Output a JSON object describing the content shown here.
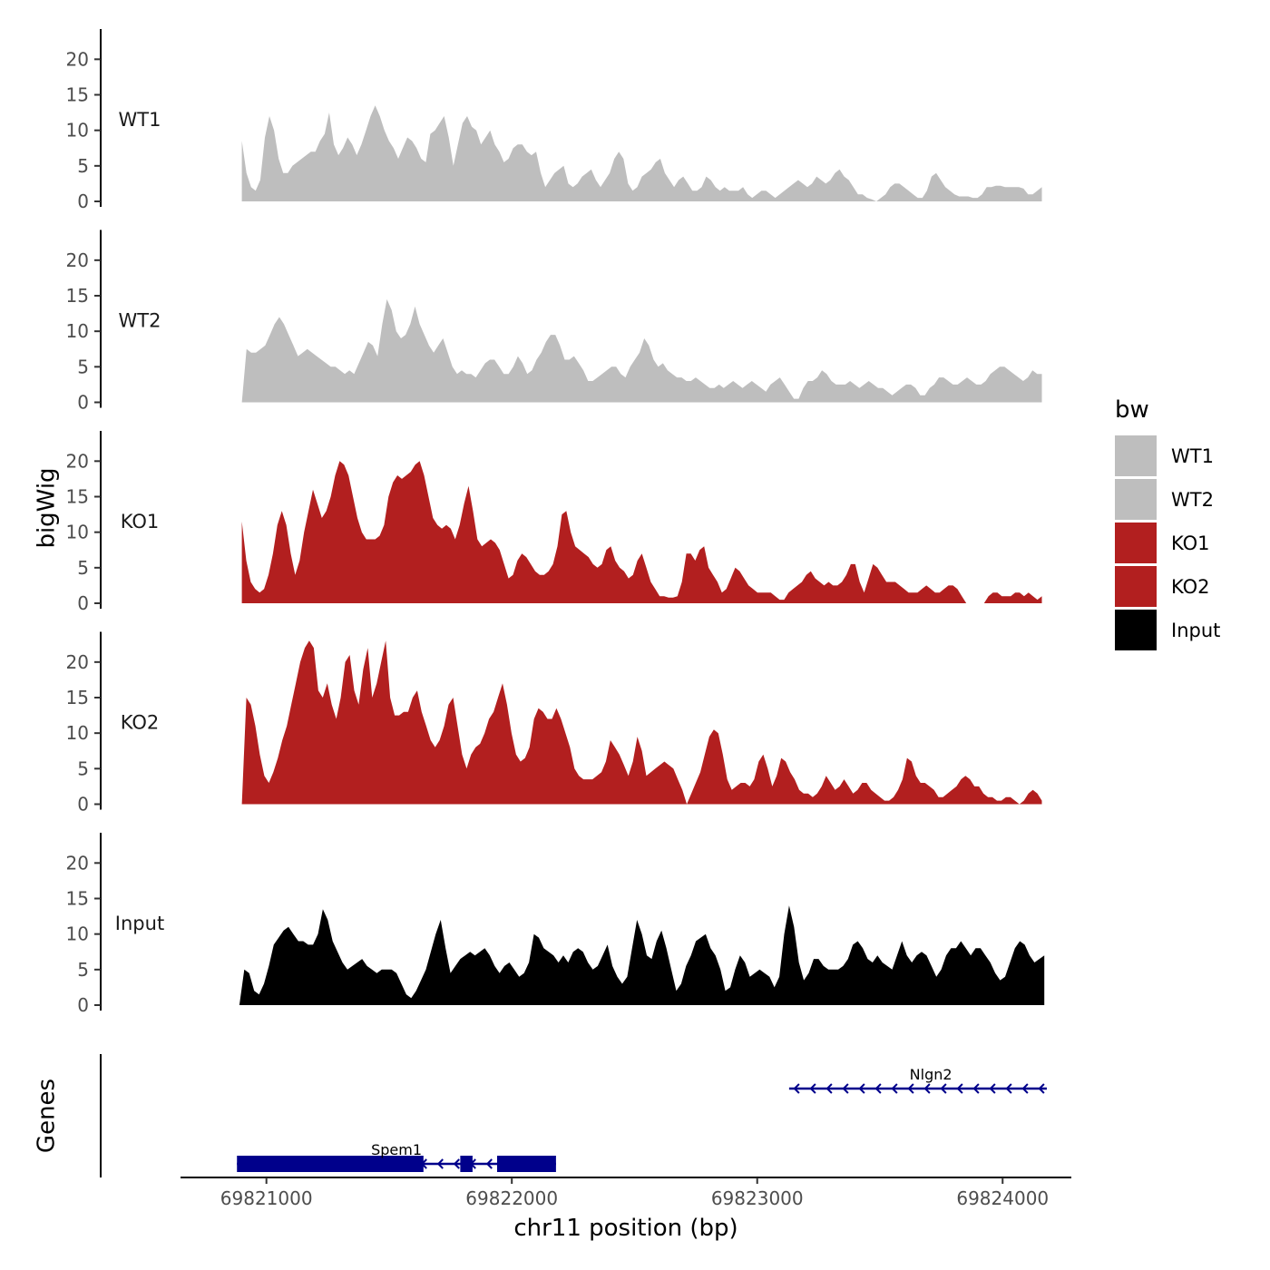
{
  "chart_data": {
    "type": "area",
    "xlabel": "chr11 position (bp)",
    "ylabel": "bigWig",
    "genes_label": "Genes",
    "xlim": [
      69820650,
      69824280
    ],
    "xticks": [
      69821000,
      69822000,
      69823000,
      69824000
    ],
    "xtick_labels": [
      "69821000",
      "69822000",
      "69823000",
      "69824000"
    ],
    "ylim": [
      0,
      24
    ],
    "yticks": [
      0,
      5,
      10,
      15,
      20
    ],
    "ytick_labels": [
      "0",
      "5",
      "10",
      "15",
      "20"
    ],
    "legend": {
      "title": "bw",
      "position": "right",
      "entries": [
        {
          "label": "WT1",
          "color": "#bebebe"
        },
        {
          "label": "WT2",
          "color": "#bebebe"
        },
        {
          "label": "KO1",
          "color": "#b21f1f"
        },
        {
          "label": "KO2",
          "color": "#b21f1f"
        },
        {
          "label": "Input",
          "color": "#000000"
        }
      ]
    },
    "series": [
      {
        "name": "WT1",
        "color": "#bebebe",
        "x_start": 69820900,
        "x_end": 69824160,
        "values": [
          8.5,
          4,
          2,
          1.5,
          3,
          9,
          12,
          10,
          6,
          4,
          4,
          5,
          5.5,
          6,
          6.5,
          7,
          7,
          8.5,
          9.5,
          12.5,
          8,
          6.5,
          7.5,
          9,
          8,
          6.5,
          8,
          10,
          12,
          13.5,
          12,
          10,
          8.5,
          7.5,
          6,
          7.5,
          9,
          8.5,
          7.5,
          6,
          5.5,
          9.5,
          10,
          11,
          12,
          9,
          5,
          8,
          11,
          12,
          10.5,
          10,
          8,
          9,
          10,
          8,
          7,
          5.5,
          6,
          7.5,
          8,
          8,
          7,
          6.5,
          7,
          4,
          2,
          3,
          4,
          4.5,
          5,
          2.5,
          2,
          2.5,
          3.5,
          4,
          4.5,
          3,
          2,
          3,
          4,
          6,
          7,
          6,
          2.5,
          1.5,
          2,
          3.5,
          4,
          4.5,
          5.5,
          6,
          4,
          3,
          2,
          3,
          3.5,
          2.5,
          1.5,
          1.5,
          2,
          3.5,
          3,
          2,
          1.5,
          2,
          1.5,
          1.5,
          1.5,
          2,
          1,
          0.5,
          1,
          1.5,
          1.5,
          1,
          0.5,
          1,
          1.5,
          2,
          2.5,
          3,
          2.5,
          2,
          2.5,
          3.5,
          3,
          2.5,
          3,
          4,
          4.5,
          3.5,
          3,
          2,
          1,
          1,
          0.5,
          0.3,
          0,
          0.5,
          1,
          2,
          2.5,
          2.5,
          2,
          1.5,
          1,
          0.5,
          0.5,
          1.5,
          3.5,
          4,
          3,
          2,
          1.5,
          1,
          0.7,
          0.7,
          0.7,
          0.5,
          0.5,
          1,
          2,
          2,
          2.2,
          2.2,
          2,
          2,
          2,
          2,
          1.8,
          1,
          1,
          1.5,
          2
        ]
      },
      {
        "name": "WT2",
        "color": "#bebebe",
        "x_start": 69820900,
        "x_end": 69824160,
        "values": [
          0,
          7.5,
          7,
          7,
          7.5,
          8,
          9.5,
          11,
          12,
          11,
          9.5,
          8,
          6.5,
          7,
          7.5,
          7,
          6.5,
          6,
          5.5,
          5,
          5,
          4.5,
          4,
          4.5,
          4,
          5.5,
          7,
          8.5,
          8,
          6.5,
          11,
          14.5,
          13,
          10,
          9,
          9.5,
          11,
          13.5,
          11,
          9.5,
          8,
          7,
          8,
          9,
          7,
          5,
          4,
          4.5,
          4,
          4,
          3.5,
          4.5,
          5.5,
          6,
          6,
          5,
          4,
          4,
          5,
          6.5,
          5.5,
          4,
          4.5,
          6,
          7,
          8.5,
          9.5,
          9.5,
          8,
          6,
          6,
          6.5,
          5.5,
          4.5,
          3,
          3,
          3.5,
          4,
          4.5,
          5,
          5,
          4,
          3.5,
          5,
          6,
          7,
          9,
          8,
          6,
          5,
          5.5,
          4.5,
          4,
          3.5,
          3.5,
          3,
          3,
          3.5,
          3,
          2.5,
          2,
          2,
          2.5,
          2,
          2.5,
          3,
          2.5,
          2,
          2.5,
          3,
          2.5,
          2,
          1.5,
          2.5,
          3,
          3.5,
          2.5,
          1.5,
          0.5,
          0.5,
          2,
          3,
          3,
          3.5,
          4.5,
          4,
          3,
          2.5,
          2.5,
          2.5,
          3,
          2.5,
          2,
          2.5,
          3,
          2.5,
          2,
          2,
          1.5,
          1,
          1.5,
          2,
          2.5,
          2.5,
          2,
          1,
          1,
          2,
          2.5,
          3.5,
          3.5,
          3,
          2.5,
          2.5,
          3,
          3.5,
          3,
          2.5,
          2.5,
          3,
          4,
          4.5,
          5,
          5,
          4.5,
          4,
          3.5,
          3,
          3.5,
          4.5,
          4,
          4
        ]
      },
      {
        "name": "KO1",
        "color": "#b21f1f",
        "x_start": 69820900,
        "x_end": 69824160,
        "values": [
          11.5,
          6,
          3,
          2,
          1.5,
          2,
          4,
          7,
          11,
          13,
          11,
          7,
          4,
          6,
          10,
          13,
          16,
          14,
          12,
          13,
          15,
          18,
          20,
          19.5,
          18,
          15,
          12,
          10,
          9,
          9,
          9,
          9.5,
          11,
          15,
          17,
          18,
          17.5,
          18,
          18.5,
          19.5,
          20,
          18,
          15,
          12,
          11,
          10.5,
          11,
          10.5,
          9,
          11,
          14,
          16.5,
          13,
          9,
          8,
          8.5,
          9,
          8.5,
          7.5,
          5.5,
          3.5,
          4,
          6,
          7,
          6.5,
          5.5,
          4.5,
          4,
          4,
          4.5,
          5.5,
          8,
          12.5,
          13,
          10,
          8,
          7.5,
          7,
          6.5,
          5.5,
          5,
          5.5,
          7.5,
          8,
          6,
          5,
          4.5,
          3.5,
          4,
          6,
          7,
          5,
          3,
          2,
          1,
          1,
          0.8,
          0.8,
          1,
          3,
          7,
          7,
          6,
          7.5,
          8,
          5,
          4,
          3,
          1.5,
          2,
          3.5,
          5,
          4.5,
          3.5,
          2.5,
          2,
          1.5,
          1.5,
          1.5,
          1.5,
          1,
          0.5,
          0.5,
          1.5,
          2,
          2.5,
          3,
          4,
          4.5,
          3.5,
          3,
          2.5,
          3,
          2.5,
          2.5,
          3,
          4,
          5.5,
          5.5,
          3,
          1.5,
          3.5,
          5.5,
          5,
          4,
          3,
          3,
          3,
          2.5,
          2,
          1.5,
          1.5,
          1.5,
          2,
          2.5,
          2,
          1.5,
          1.5,
          2,
          2.5,
          2.5,
          2,
          1,
          0,
          0,
          0,
          0,
          0,
          1,
          1.5,
          1.5,
          1,
          1,
          1,
          1.5,
          1.5,
          1,
          1.5,
          1,
          0.5,
          1
        ]
      },
      {
        "name": "KO2",
        "color": "#b21f1f",
        "x_start": 69820900,
        "x_end": 69824160,
        "values": [
          0,
          15,
          14,
          11,
          7,
          4,
          3,
          4.5,
          6.5,
          9,
          11,
          14,
          17,
          20,
          22,
          23,
          22,
          16,
          15,
          17,
          14,
          12,
          15,
          20,
          21,
          16,
          14,
          19,
          22,
          15,
          17,
          20,
          23,
          15,
          12.5,
          12.5,
          13,
          13,
          15,
          16,
          13,
          11,
          9,
          8,
          9,
          11,
          14,
          15,
          11,
          7,
          5,
          7,
          8,
          8.5,
          10,
          12,
          13,
          15,
          17,
          14,
          10,
          7,
          6,
          6.5,
          8,
          12,
          13.5,
          13,
          12,
          12,
          13.5,
          12,
          10,
          8,
          5,
          4,
          3.5,
          3.5,
          3.5,
          4,
          4.5,
          6,
          9,
          8,
          7,
          5.5,
          4,
          6,
          9.5,
          7.5,
          4,
          4.5,
          5,
          5.5,
          6,
          5.5,
          5,
          3.5,
          2,
          0,
          1.5,
          3,
          4.5,
          7,
          9.5,
          10.5,
          10,
          7,
          3.5,
          2,
          2.5,
          3,
          3,
          2.5,
          3.5,
          6,
          7,
          5,
          2.5,
          4,
          6.5,
          6,
          4.5,
          3.5,
          2,
          1.5,
          1.5,
          1,
          1.5,
          2.5,
          4,
          3,
          2,
          2.5,
          3.5,
          2.5,
          1.5,
          2,
          3,
          3,
          2,
          1.5,
          1,
          0.5,
          0.5,
          1,
          2,
          3.5,
          6.5,
          6,
          4,
          3,
          3,
          2.5,
          2,
          1,
          1,
          1.5,
          2,
          2.5,
          3.5,
          4,
          3.5,
          2.5,
          2.5,
          1.5,
          1,
          1,
          0.5,
          0.5,
          1,
          1,
          0.5,
          0,
          0.5,
          1.5,
          2,
          1.5,
          0.5
        ]
      },
      {
        "name": "Input",
        "color": "#000000",
        "x_start": 69820890,
        "x_end": 69824170,
        "values": [
          0,
          5,
          4.5,
          2,
          1.5,
          3,
          5.5,
          8.5,
          9.5,
          10.5,
          11,
          10,
          9,
          9,
          8.5,
          8.5,
          10,
          13.5,
          12,
          9,
          7.5,
          6,
          5,
          5.5,
          6,
          6.5,
          5.5,
          5,
          4.5,
          5,
          5,
          5,
          4.5,
          3,
          1.5,
          1,
          2,
          3.5,
          5,
          7.5,
          10,
          12,
          8,
          4.5,
          5.5,
          6.5,
          7,
          7.5,
          7,
          7.5,
          8,
          7,
          5.5,
          4.5,
          5.5,
          6,
          5,
          4,
          4.5,
          6,
          10,
          9.5,
          8,
          7.5,
          7,
          6,
          7,
          6,
          7.5,
          8,
          7.5,
          6,
          5,
          5.5,
          7,
          8.5,
          5.5,
          4,
          3,
          4,
          8,
          12,
          10,
          7,
          6.5,
          9,
          10.5,
          8,
          5,
          2,
          3,
          5.5,
          7,
          9,
          9.5,
          10,
          8,
          7,
          5,
          2,
          2.5,
          5,
          7,
          6,
          4,
          4.5,
          5,
          4.5,
          4,
          2.5,
          4,
          10,
          14,
          11,
          6,
          3.5,
          4.5,
          6.5,
          6.5,
          5.5,
          5,
          5,
          5,
          5.5,
          6.5,
          8.5,
          9,
          8,
          6.5,
          6,
          7,
          6,
          5.5,
          5,
          7,
          9,
          7,
          6,
          7,
          7.5,
          7,
          5.5,
          4,
          5,
          7,
          8,
          8,
          9,
          8,
          7,
          8,
          8,
          7,
          6,
          4.5,
          3.5,
          4,
          6,
          8,
          9,
          8.5,
          7,
          6,
          6.5,
          7
        ]
      }
    ],
    "genes": [
      {
        "name": "Spem1",
        "start": 69820880,
        "end": 69822180,
        "strand": "-",
        "row": 2,
        "exons": [
          [
            69820880,
            69821640
          ],
          [
            69821790,
            69821840
          ],
          [
            69821940,
            69822180
          ]
        ]
      },
      {
        "name": "Nlgn2",
        "start": 69823130,
        "end": 69824180,
        "strand": "-",
        "row": 1,
        "exons": []
      }
    ]
  }
}
